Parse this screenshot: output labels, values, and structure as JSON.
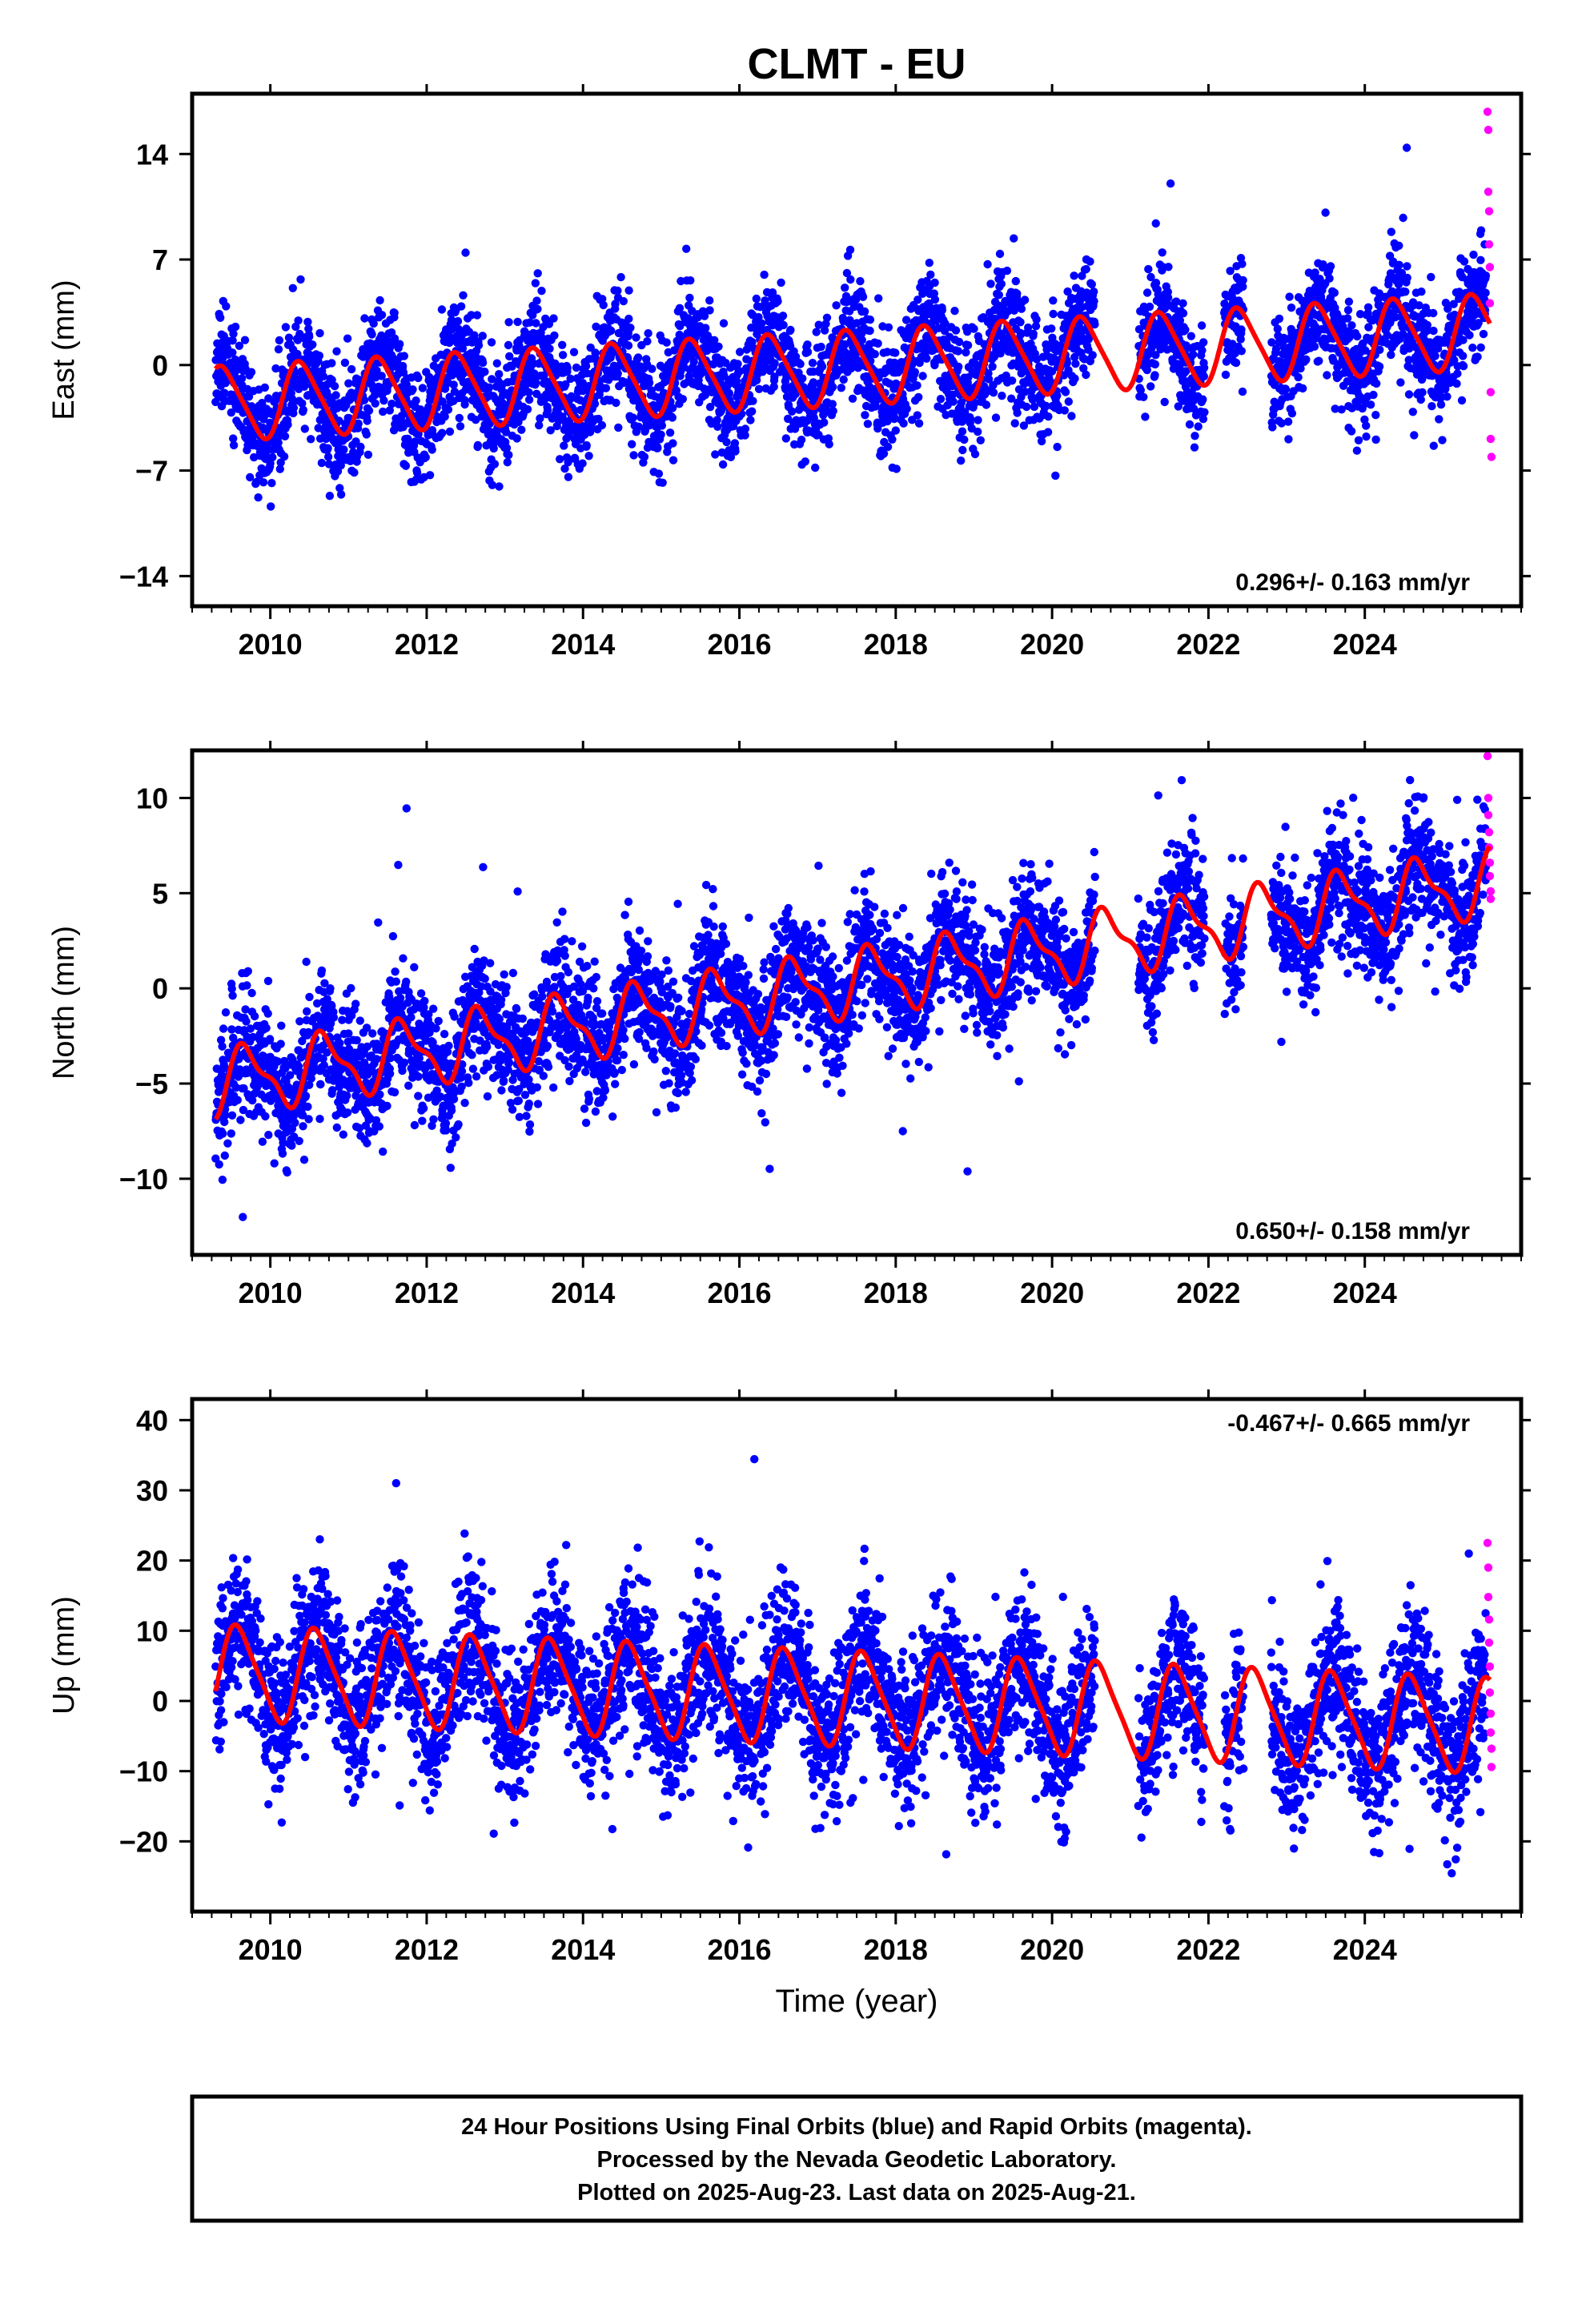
{
  "title": "CLMT - EU",
  "x_axis_label": "Time (year)",
  "footer_lines": [
    "24 Hour Positions Using Final Orbits (blue) and Rapid Orbits (magenta).",
    "Processed by the Nevada Geodetic Laboratory.",
    "Plotted on 2025-Aug-23. Last data on 2025-Aug-21."
  ],
  "colors": {
    "final_orbits": "#0000ff",
    "rapid_orbits": "#ff00ff",
    "model_fit": "#ff0000",
    "frame": "#000000"
  },
  "chart_data": [
    {
      "type": "scatter",
      "ylabel": "East (mm)",
      "xlabel": "",
      "xlim": [
        2009.0,
        2026.0
      ],
      "ylim": [
        -16.0,
        18.0
      ],
      "xticks": [
        2010,
        2012,
        2014,
        2016,
        2018,
        2020,
        2022,
        2024
      ],
      "yticks": [
        -14,
        -7,
        0,
        7,
        14
      ],
      "rate_label": "0.296+/- 0.163 mm/yr",
      "rate_position": "bottom-right",
      "series": [
        {
          "name": "Final Orbits",
          "marker": "dot",
          "color": "#0000ff",
          "points_per_year": 330,
          "span": [
            2009.3,
            2025.55
          ],
          "gaps": [
            [
              2020.55,
              2021.1
            ],
            [
              2021.95,
              2022.2
            ],
            [
              2022.45,
              2022.8
            ]
          ],
          "trend": {
            "ref_year": 2017.0,
            "offset_mm": -0.3,
            "rate_mm_per_yr": 0.296
          },
          "annual_amplitude_mm": 2.4,
          "annual_phase_yr": 0.15,
          "scatter_sd_mm": 1.9,
          "seed": 11
        },
        {
          "name": "Rapid Orbits",
          "marker": "dot",
          "color": "#ff00ff",
          "x": [
            2025.57,
            2025.58,
            2025.58,
            2025.59,
            2025.59,
            2025.6,
            2025.6,
            2025.61,
            2025.61,
            2025.62
          ],
          "y": [
            16.8,
            15.6,
            11.5,
            10.2,
            8.0,
            6.5,
            4.1,
            -1.8,
            -4.9,
            -6.1
          ]
        },
        {
          "name": "Model fit",
          "marker": "line",
          "color": "#ff0000",
          "span": [
            2009.3,
            2025.6
          ],
          "trend": {
            "ref_year": 2017.0,
            "offset_mm": -0.3,
            "rate_mm_per_yr": 0.296
          },
          "annual_amplitude_mm": 2.4,
          "annual_phase_yr": 0.15,
          "semiannual_amplitude_mm": 0.4
        }
      ]
    },
    {
      "type": "scatter",
      "ylabel": "North (mm)",
      "xlabel": "",
      "xlim": [
        2009.0,
        2026.0
      ],
      "ylim": [
        -14.0,
        12.5
      ],
      "xticks": [
        2010,
        2012,
        2014,
        2016,
        2018,
        2020,
        2022,
        2024
      ],
      "yticks": [
        -10,
        -5,
        0,
        5,
        10
      ],
      "rate_label": "0.650+/- 0.158 mm/yr",
      "rate_position": "bottom-right",
      "series": [
        {
          "name": "Final Orbits",
          "marker": "dot",
          "color": "#0000ff",
          "points_per_year": 330,
          "span": [
            2009.3,
            2025.55
          ],
          "gaps": [
            [
              2020.55,
              2021.1
            ],
            [
              2021.95,
              2022.2
            ],
            [
              2022.45,
              2022.8
            ]
          ],
          "trend": {
            "ref_year": 2017.0,
            "offset_mm": 0.0,
            "rate_mm_per_yr": 0.65
          },
          "annual_amplitude_mm": 1.6,
          "annual_phase_yr": 0.45,
          "semiannual_amplitude_mm": 0.6,
          "scatter_sd_mm": 1.6,
          "seed": 23
        },
        {
          "name": "Rapid Orbits",
          "marker": "dot",
          "color": "#ff00ff",
          "x": [
            2025.57,
            2025.58,
            2025.58,
            2025.59,
            2025.59,
            2025.6,
            2025.6,
            2025.61,
            2025.61
          ],
          "y": [
            12.2,
            10.0,
            9.1,
            8.2,
            7.4,
            6.6,
            5.9,
            5.1,
            4.7
          ]
        },
        {
          "name": "Model fit",
          "marker": "line",
          "color": "#ff0000",
          "span": [
            2009.3,
            2025.6
          ],
          "trend": {
            "ref_year": 2017.0,
            "offset_mm": 0.0,
            "rate_mm_per_yr": 0.65
          },
          "annual_amplitude_mm": 1.6,
          "annual_phase_yr": 0.45,
          "semiannual_amplitude_mm": 0.6
        }
      ]
    },
    {
      "type": "scatter",
      "ylabel": "Up (mm)",
      "xlabel": "Time (year)",
      "xlim": [
        2009.0,
        2026.0
      ],
      "ylim": [
        -30.0,
        43.0
      ],
      "xticks": [
        2010,
        2012,
        2014,
        2016,
        2018,
        2020,
        2022,
        2024
      ],
      "yticks": [
        -20,
        -10,
        0,
        10,
        20,
        30,
        40
      ],
      "rate_label": "-0.467+/- 0.665 mm/yr",
      "rate_position": "top-right",
      "series": [
        {
          "name": "Final Orbits",
          "marker": "dot",
          "color": "#0000ff",
          "points_per_year": 330,
          "span": [
            2009.3,
            2025.55
          ],
          "gaps": [
            [
              2020.55,
              2021.1
            ],
            [
              2021.95,
              2022.2
            ],
            [
              2022.45,
              2022.8
            ]
          ],
          "trend": {
            "ref_year": 2017.0,
            "offset_mm": 0.5,
            "rate_mm_per_yr": -0.467
          },
          "annual_amplitude_mm": 6.5,
          "annual_phase_yr": 0.35,
          "scatter_sd_mm": 5.2,
          "seed": 37
        },
        {
          "name": "Rapid Orbits",
          "marker": "dot",
          "color": "#ff00ff",
          "x": [
            2025.57,
            2025.58,
            2025.58,
            2025.59,
            2025.59,
            2025.6,
            2025.6,
            2025.61,
            2025.61,
            2025.62,
            2025.62
          ],
          "y": [
            22.5,
            19.0,
            14.8,
            11.6,
            8.3,
            4.9,
            1.2,
            -1.8,
            -4.5,
            -6.8,
            -9.4
          ]
        },
        {
          "name": "Model fit",
          "marker": "line",
          "color": "#ff0000",
          "span": [
            2009.3,
            2025.6
          ],
          "trend": {
            "ref_year": 2017.0,
            "offset_mm": 0.5,
            "rate_mm_per_yr": -0.467
          },
          "annual_amplitude_mm": 6.5,
          "annual_phase_yr": 0.35,
          "semiannual_amplitude_mm": 1.2
        }
      ]
    }
  ]
}
